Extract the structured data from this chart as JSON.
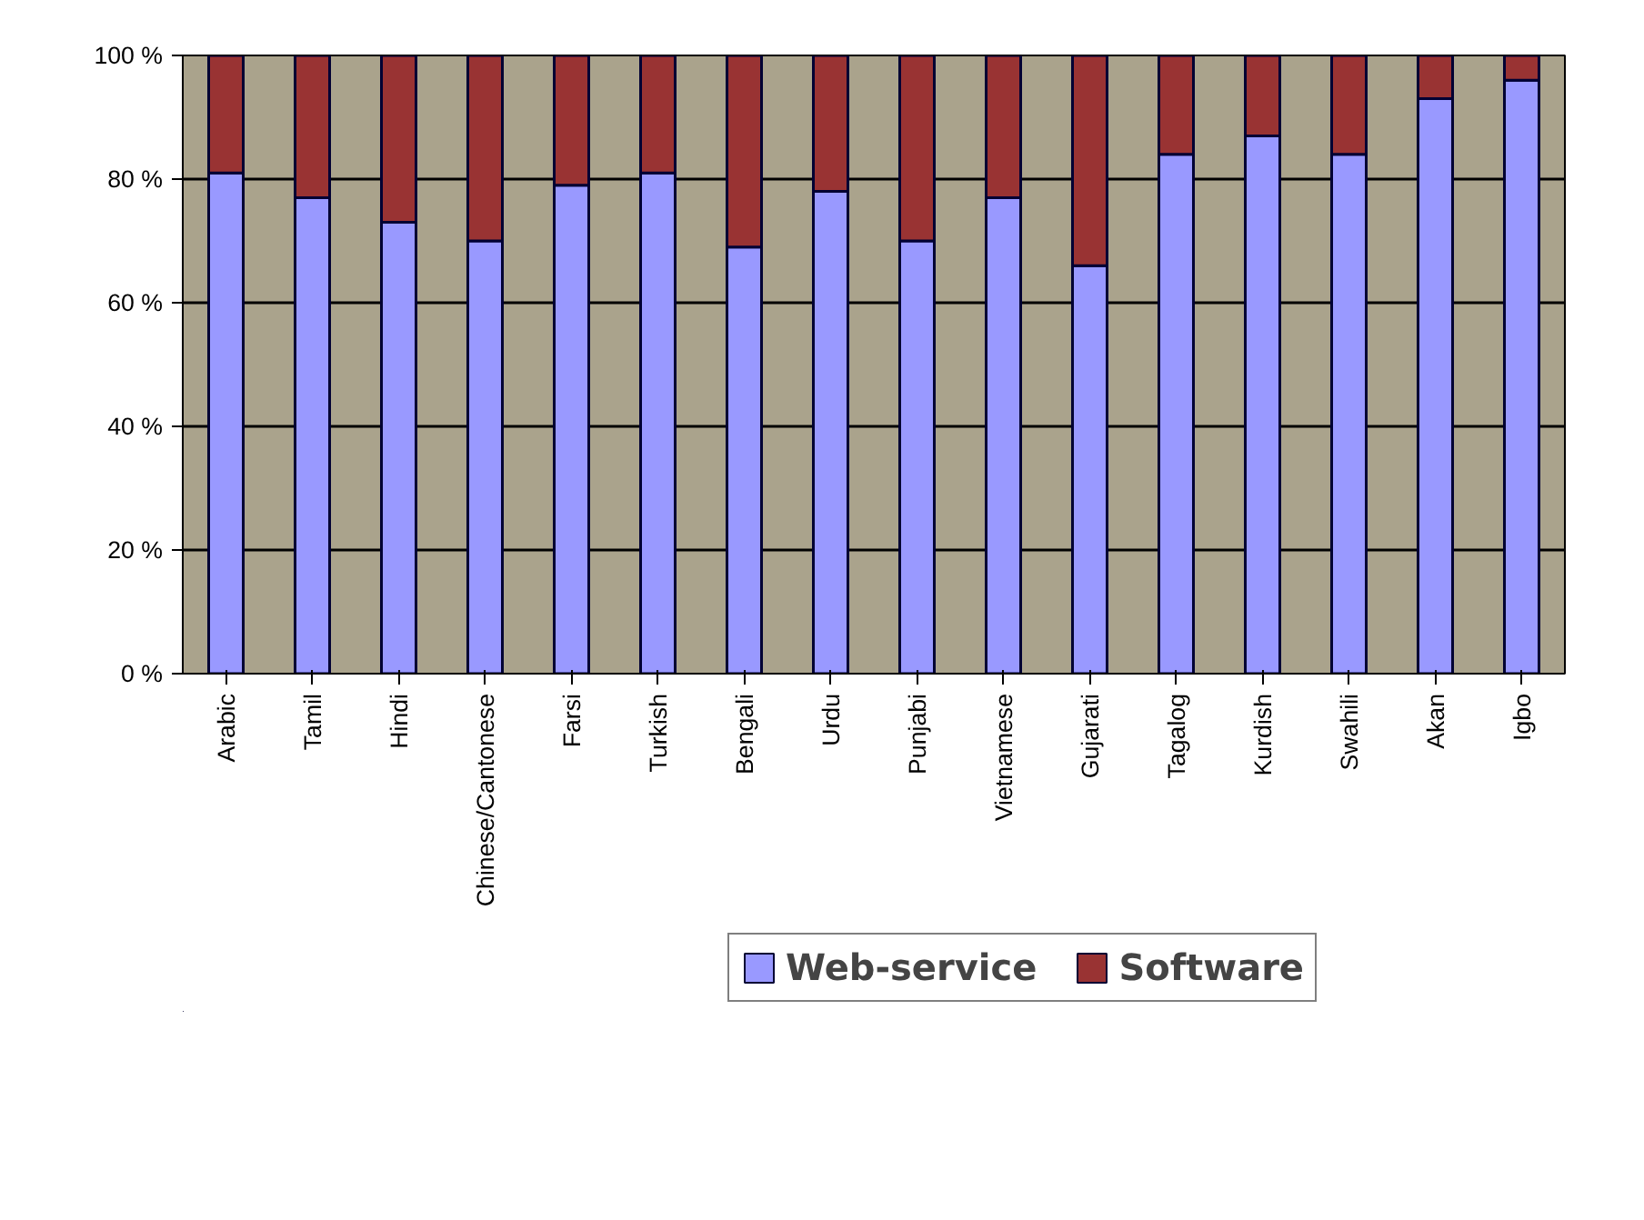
{
  "chart_data": {
    "type": "bar",
    "stacked": true,
    "categories": [
      "Arabic",
      "Tamil",
      "Hindi",
      "Chinese/Cantonese",
      "Farsi",
      "Turkish",
      "Bengali",
      "Urdu",
      "Punjabi",
      "Vietnamese",
      "Gujarati",
      "Tagalog",
      "Kurdish",
      "Swahili",
      "Akan",
      "Igbo"
    ],
    "series": [
      {
        "name": "Web-service",
        "color": "#9999ff",
        "values": [
          81,
          77,
          73,
          70,
          79,
          81,
          69,
          78,
          70,
          77,
          66,
          84,
          87,
          84,
          93,
          96
        ]
      },
      {
        "name": "Software",
        "color": "#993333",
        "values": [
          19,
          23,
          27,
          30,
          21,
          19,
          31,
          22,
          30,
          23,
          34,
          16,
          13,
          16,
          7,
          4
        ]
      }
    ],
    "ylim": [
      0,
      100
    ],
    "yticks": [
      {
        "value": 0,
        "label": "0 %"
      },
      {
        "value": 20,
        "label": "20 %"
      },
      {
        "value": 40,
        "label": "40 %"
      },
      {
        "value": 60,
        "label": "60 %"
      },
      {
        "value": 80,
        "label": "80 %"
      },
      {
        "value": 100,
        "label": "100 %"
      }
    ],
    "grid": "y",
    "legend": "bottom"
  }
}
